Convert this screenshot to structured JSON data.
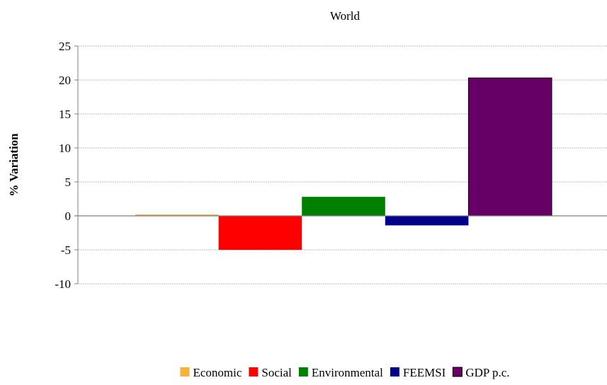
{
  "chart_data": {
    "type": "bar",
    "title": "World",
    "ylabel": "% Variation",
    "xlabel": "",
    "ylim": [
      -10,
      25
    ],
    "yticks": [
      25,
      20,
      15,
      10,
      5,
      0,
      -5,
      -10
    ],
    "grid": true,
    "legend_position": "bottom",
    "categories": [
      "Economic",
      "Social",
      "Environmental",
      "FEEMSI",
      "GDP p.c."
    ],
    "series": [
      {
        "name": "Economic",
        "value": 0.2,
        "color": "#F4B33D"
      },
      {
        "name": "Social",
        "value": -5.0,
        "color": "#FF0000"
      },
      {
        "name": "Environmental",
        "value": 2.8,
        "color": "#008000"
      },
      {
        "name": "FEEMSI",
        "value": -1.4,
        "color": "#00008B"
      },
      {
        "name": "GDP p.c.",
        "value": 20.3,
        "color": "#660066"
      }
    ]
  }
}
